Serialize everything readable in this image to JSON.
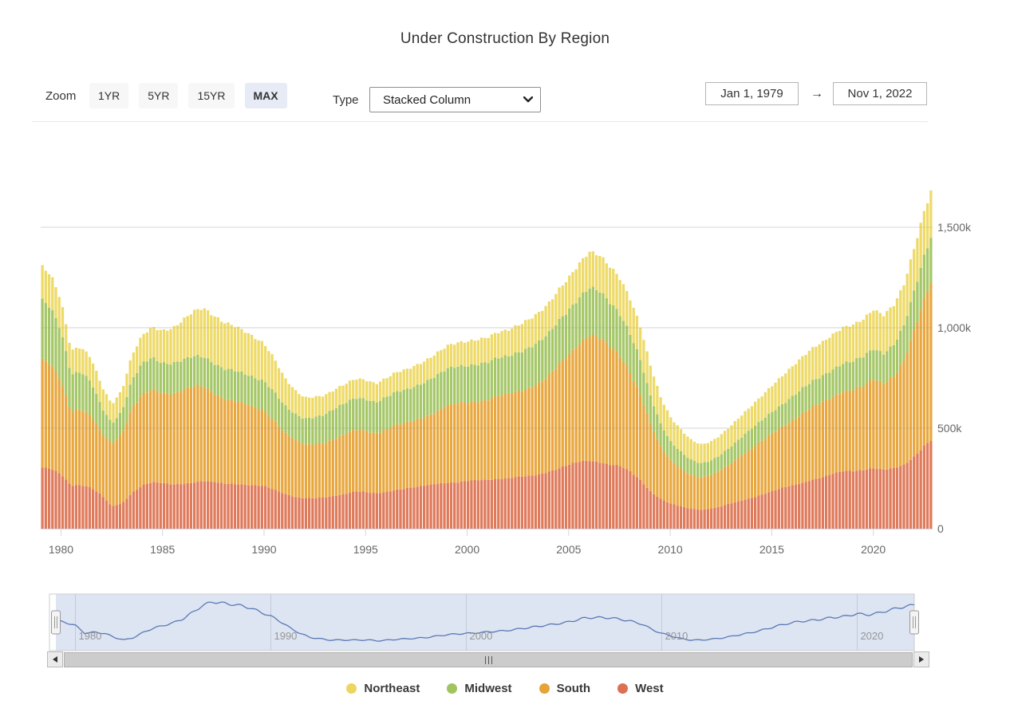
{
  "title": "Under Construction By Region",
  "toolbar": {
    "zoom_label": "Zoom",
    "zoom_buttons": [
      "1YR",
      "5YR",
      "15YR",
      "MAX"
    ],
    "active_zoom": "MAX",
    "type_label": "Type",
    "type_value": "Stacked Column",
    "date_from": "Jan 1, 1979",
    "date_to": "Nov 1, 2022",
    "arrow": "→"
  },
  "legend": [
    {
      "label": "Northeast",
      "color": "#ECD65F"
    },
    {
      "label": "Midwest",
      "color": "#A0C45E"
    },
    {
      "label": "South",
      "color": "#E5A338"
    },
    {
      "label": "West",
      "color": "#DC7053"
    }
  ],
  "chart_data": {
    "type": "bar",
    "stacked": true,
    "title": "Under Construction By Region",
    "unit": "thousands of housing units (k)",
    "ylim": [
      0,
      1750
    ],
    "xlim": [
      1979,
      2022.92
    ],
    "grid": true,
    "y_ticks": [
      {
        "v": 0,
        "label": "0"
      },
      {
        "v": 500,
        "label": "500k"
      },
      {
        "v": 1000,
        "label": "1,000k"
      },
      {
        "v": 1500,
        "label": "1,500k"
      }
    ],
    "x_ticks": [
      1980,
      1985,
      1990,
      1995,
      2000,
      2005,
      2010,
      2015,
      2020
    ],
    "x": [
      1979,
      1979.5,
      1980,
      1980.5,
      1981,
      1981.5,
      1982,
      1982.5,
      1983,
      1983.5,
      1984,
      1984.5,
      1985,
      1985.5,
      1986,
      1986.5,
      1987,
      1987.5,
      1988,
      1988.5,
      1989,
      1989.5,
      1990,
      1990.5,
      1991,
      1991.5,
      1992,
      1992.5,
      1993,
      1993.5,
      1994,
      1994.5,
      1995,
      1995.5,
      1996,
      1996.5,
      1997,
      1997.5,
      1998,
      1998.5,
      1999,
      1999.5,
      2000,
      2000.5,
      2001,
      2001.5,
      2002,
      2002.5,
      2003,
      2003.5,
      2004,
      2004.5,
      2005,
      2005.5,
      2006,
      2006.5,
      2007,
      2007.5,
      2008,
      2008.5,
      2009,
      2009.5,
      2010,
      2010.5,
      2011,
      2011.5,
      2012,
      2012.5,
      2013,
      2013.5,
      2014,
      2014.5,
      2015,
      2015.5,
      2016,
      2016.5,
      2017,
      2017.5,
      2018,
      2018.5,
      2019,
      2019.5,
      2020,
      2020.5,
      2021,
      2021.5,
      2022,
      2022.5,
      2022.9
    ],
    "series": [
      {
        "name": "West",
        "color": "#DF7A5B",
        "wiggle": 0.008,
        "values": [
          305,
          295,
          270,
          215,
          220,
          205,
          165,
          110,
          125,
          180,
          215,
          230,
          225,
          220,
          225,
          230,
          235,
          230,
          225,
          225,
          220,
          215,
          210,
          195,
          175,
          160,
          150,
          150,
          155,
          165,
          175,
          185,
          180,
          175,
          185,
          195,
          200,
          205,
          215,
          225,
          230,
          230,
          235,
          240,
          245,
          250,
          250,
          255,
          260,
          270,
          285,
          300,
          315,
          330,
          340,
          335,
          320,
          310,
          285,
          245,
          190,
          150,
          125,
          110,
          100,
          95,
          100,
          110,
          125,
          140,
          155,
          170,
          185,
          200,
          215,
          230,
          245,
          255,
          270,
          285,
          290,
          295,
          300,
          290,
          300,
          320,
          360,
          410,
          440
        ]
      },
      {
        "name": "South",
        "color": "#E8A73F",
        "wiggle": 0.01,
        "values": [
          535,
          520,
          470,
          370,
          375,
          350,
          310,
          315,
          350,
          420,
          450,
          460,
          450,
          455,
          465,
          475,
          470,
          445,
          425,
          415,
          400,
          385,
          375,
          345,
          305,
          280,
          265,
          270,
          275,
          285,
          295,
          305,
          305,
          300,
          310,
          320,
          325,
          335,
          345,
          360,
          380,
          390,
          390,
          395,
          400,
          410,
          415,
          425,
          440,
          455,
          475,
          510,
          545,
          590,
          630,
          620,
          585,
          550,
          500,
          435,
          340,
          260,
          215,
          190,
          170,
          160,
          165,
          180,
          200,
          225,
          245,
          265,
          285,
          305,
          325,
          345,
          360,
          370,
          385,
          400,
          405,
          415,
          440,
          430,
          460,
          520,
          620,
          720,
          800
        ]
      },
      {
        "name": "Midwest",
        "color": "#A5C768",
        "wiggle": 0.014,
        "values": [
          300,
          285,
          250,
          185,
          185,
          170,
          130,
          100,
          110,
          140,
          155,
          160,
          150,
          150,
          150,
          150,
          150,
          150,
          150,
          150,
          150,
          150,
          150,
          145,
          135,
          130,
          130,
          135,
          140,
          150,
          155,
          160,
          160,
          155,
          160,
          165,
          165,
          170,
          175,
          180,
          185,
          185,
          185,
          185,
          185,
          190,
          190,
          195,
          200,
          205,
          210,
          220,
          225,
          230,
          235,
          230,
          220,
          210,
          195,
          175,
          140,
          115,
          95,
          85,
          75,
          70,
          72,
          78,
          85,
          92,
          98,
          103,
          108,
          112,
          118,
          124,
          128,
          132,
          136,
          140,
          142,
          146,
          152,
          150,
          158,
          172,
          195,
          218,
          228
        ]
      },
      {
        "name": "Northeast",
        "color": "#EEDA68",
        "wiggle": 0.028,
        "values": [
          168,
          162,
          150,
          120,
          125,
          120,
          105,
          95,
          105,
          125,
          140,
          150,
          160,
          175,
          200,
          225,
          240,
          235,
          230,
          225,
          215,
          200,
          185,
          165,
          140,
          120,
          105,
          100,
          95,
          95,
          95,
          95,
          95,
          92,
          95,
          98,
          100,
          102,
          105,
          110,
          115,
          118,
          120,
          122,
          125,
          128,
          130,
          135,
          140,
          145,
          150,
          155,
          160,
          168,
          178,
          180,
          180,
          178,
          172,
          165,
          155,
          135,
          120,
          110,
          100,
          95,
          95,
          98,
          102,
          108,
          115,
          122,
          130,
          140,
          150,
          158,
          165,
          168,
          172,
          178,
          182,
          186,
          195,
          190,
          196,
          205,
          215,
          222,
          228
        ]
      }
    ],
    "legend_position": "bottom",
    "navigator": {
      "series": "Northeast",
      "x_ticks": [
        1980,
        1990,
        2000,
        2010,
        2020
      ],
      "range_start": "Jan 1, 1979",
      "range_end": "Nov 1, 2022"
    }
  }
}
